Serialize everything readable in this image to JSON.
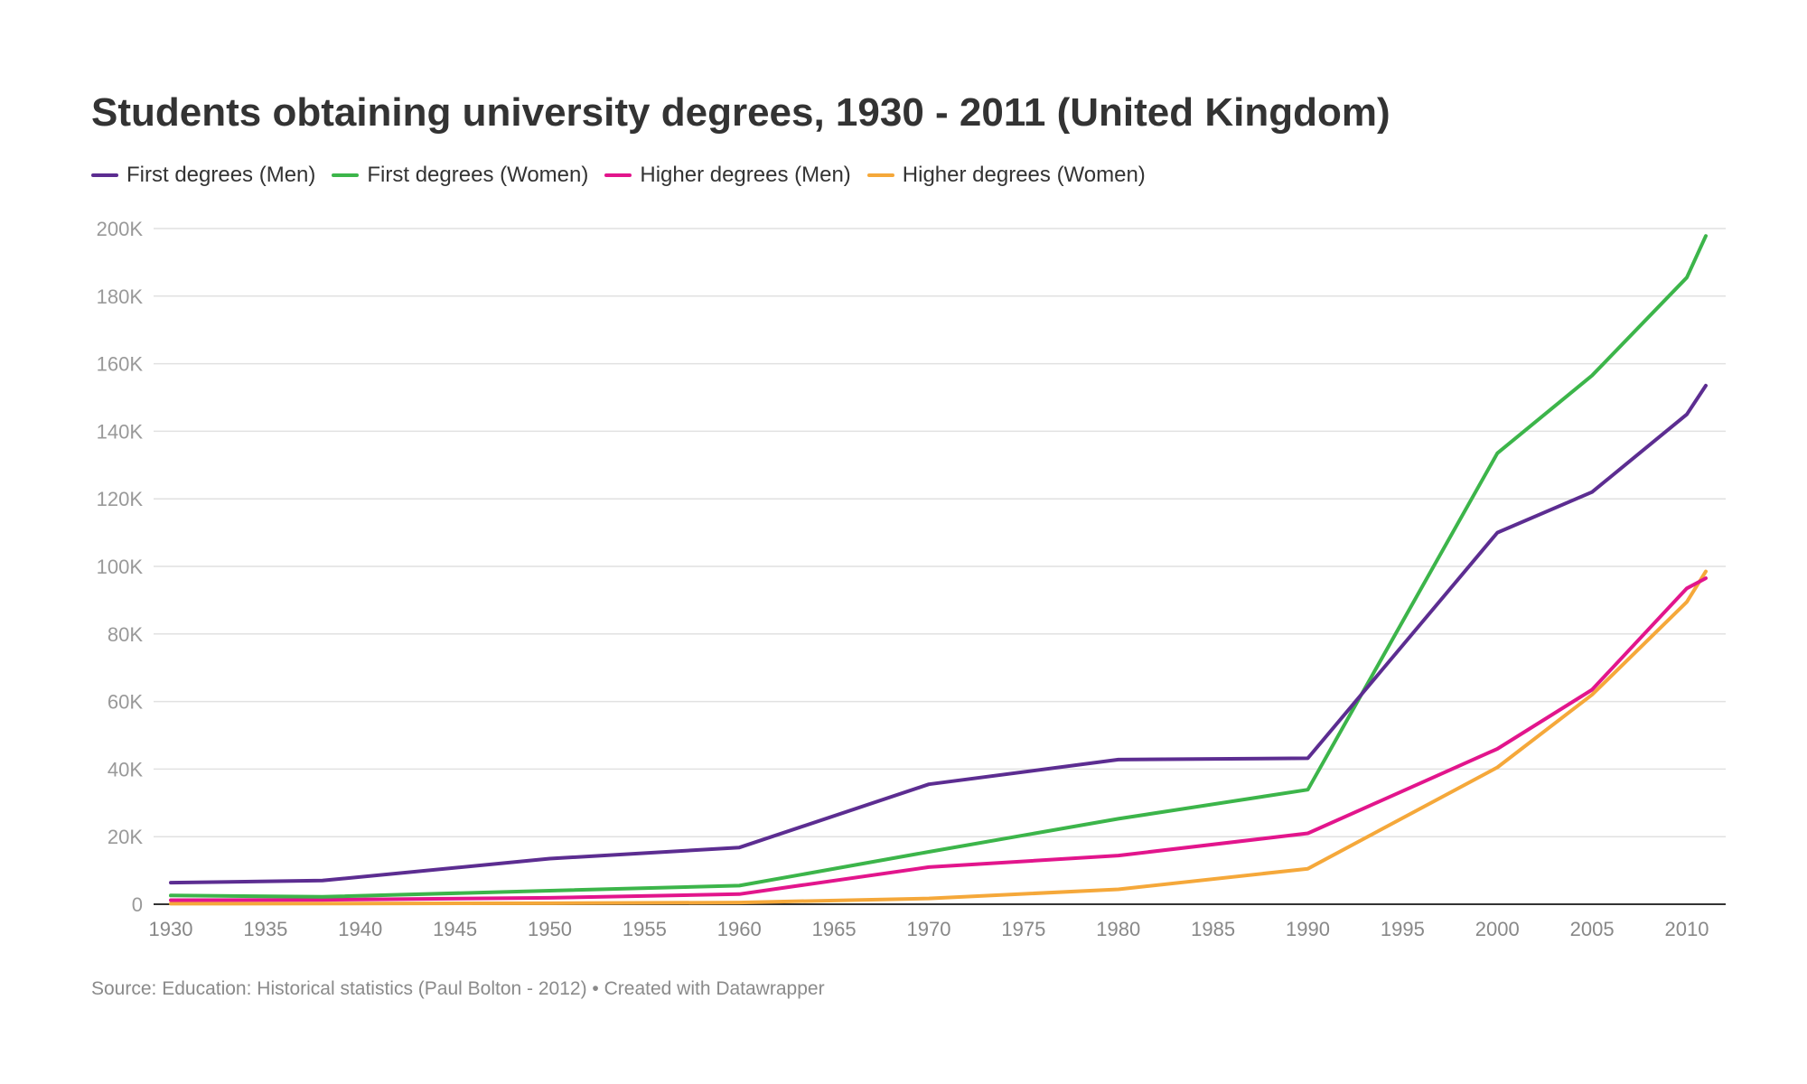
{
  "title": "Students obtaining university degrees, 1930 - 2011 (United Kingdom)",
  "footer": {
    "source": "Source: Education: Historical statistics (Paul Bolton - 2012) • Created with Datawrapper"
  },
  "chart_data": {
    "type": "line",
    "title": "Students obtaining university degrees, 1930 - 2011 (United Kingdom)",
    "xlabel": "",
    "ylabel": "",
    "xlim": [
      1930,
      2011
    ],
    "ylim": [
      0,
      200000
    ],
    "grid": true,
    "legend_position": "top-left",
    "x_ticks": [
      1930,
      1935,
      1940,
      1945,
      1950,
      1955,
      1960,
      1965,
      1970,
      1975,
      1980,
      1985,
      1990,
      1995,
      2000,
      2005,
      2010
    ],
    "y_ticks": [
      {
        "value": 0,
        "label": "0"
      },
      {
        "value": 20000,
        "label": "20K"
      },
      {
        "value": 40000,
        "label": "40K"
      },
      {
        "value": 60000,
        "label": "60K"
      },
      {
        "value": 80000,
        "label": "80K"
      },
      {
        "value": 100000,
        "label": "100K"
      },
      {
        "value": 120000,
        "label": "120K"
      },
      {
        "value": 140000,
        "label": "140K"
      },
      {
        "value": 160000,
        "label": "160K"
      },
      {
        "value": 180000,
        "label": "180K"
      },
      {
        "value": 200000,
        "label": "200K"
      }
    ],
    "x": [
      1930,
      1938,
      1950,
      1960,
      1970,
      1980,
      1990,
      2000,
      2005,
      2010,
      2011
    ],
    "series": [
      {
        "name": "First degrees (Men)",
        "color": "#5c2d91",
        "values": [
          6400,
          7000,
          13500,
          16800,
          35500,
          42800,
          43200,
          110000,
          122000,
          145000,
          153500
        ]
      },
      {
        "name": "First degrees (Women)",
        "color": "#3cb54a",
        "values": [
          2600,
          2200,
          4000,
          5500,
          15500,
          25300,
          33900,
          133500,
          156500,
          185500,
          197800
        ]
      },
      {
        "name": "Higher degrees (Men)",
        "color": "#e2158c",
        "values": [
          1200,
          1300,
          1900,
          3000,
          11000,
          14400,
          21000,
          46000,
          63500,
          93500,
          96500
        ]
      },
      {
        "name": "Higher degrees (Women)",
        "color": "#f5a83a",
        "values": [
          150,
          200,
          300,
          500,
          1700,
          4400,
          10500,
          40500,
          62000,
          89500,
          98500
        ]
      }
    ]
  }
}
